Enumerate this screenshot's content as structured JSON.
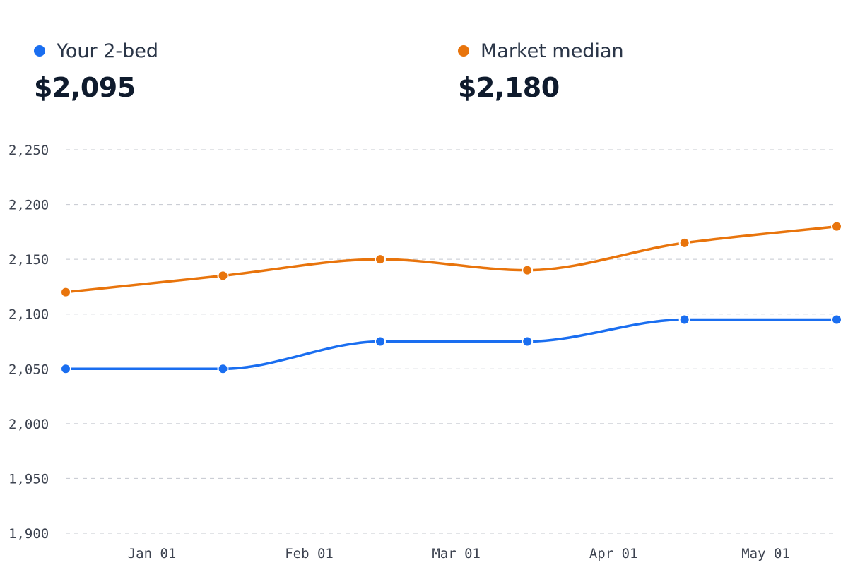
{
  "legend": [
    {
      "label": "Your 2-bed",
      "value": "$2,095",
      "color": "#1a6ef0"
    },
    {
      "label": "Market median",
      "value": "$2,180",
      "color": "#e8740c"
    }
  ],
  "chart_data": {
    "type": "line",
    "x": [
      "2023-12-15",
      "2024-01-15",
      "2024-02-15",
      "2024-03-15",
      "2024-04-15",
      "2024-05-15"
    ],
    "x_tick_labels": [
      "Jan 01",
      "Feb 01",
      "Mar 01",
      "Apr 01",
      "May 01"
    ],
    "x_tick_dates": [
      "2024-01-01",
      "2024-02-01",
      "2024-03-01",
      "2024-04-01",
      "2024-05-01"
    ],
    "y_ticks": [
      "1,900",
      "1,950",
      "2,000",
      "2,050",
      "2,100",
      "2,150",
      "2,200",
      "2,250"
    ],
    "ylim": [
      1900,
      2250
    ],
    "grid": true,
    "series": [
      {
        "name": "Your 2-bed",
        "color": "#1a6ef0",
        "values": [
          2050,
          2050,
          2075,
          2075,
          2095,
          2095
        ]
      },
      {
        "name": "Market median",
        "color": "#e8740c",
        "values": [
          2120,
          2135,
          2150,
          2140,
          2165,
          2180
        ]
      }
    ]
  }
}
